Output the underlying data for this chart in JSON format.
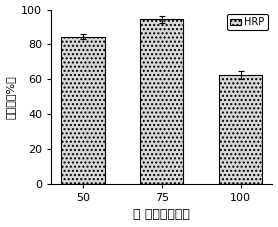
{
  "categories": [
    "50",
    "75",
    "100"
  ],
  "values": [
    84.5,
    94.5,
    62.5
  ],
  "errors": [
    1.5,
    2.0,
    2.5
  ],
  "bar_color": "#d8d8d8",
  "bar_edgecolor": "#000000",
  "hatch": "....",
  "ylabel": "回收率（%）",
  "xlabel": "浓 度（毫摩尔）",
  "ylim": [
    0,
    100
  ],
  "yticks": [
    0,
    20,
    40,
    60,
    80,
    100
  ],
  "legend_label": "HRP",
  "bar_width": 0.55,
  "ecolor": "#000000",
  "capsize": 2
}
